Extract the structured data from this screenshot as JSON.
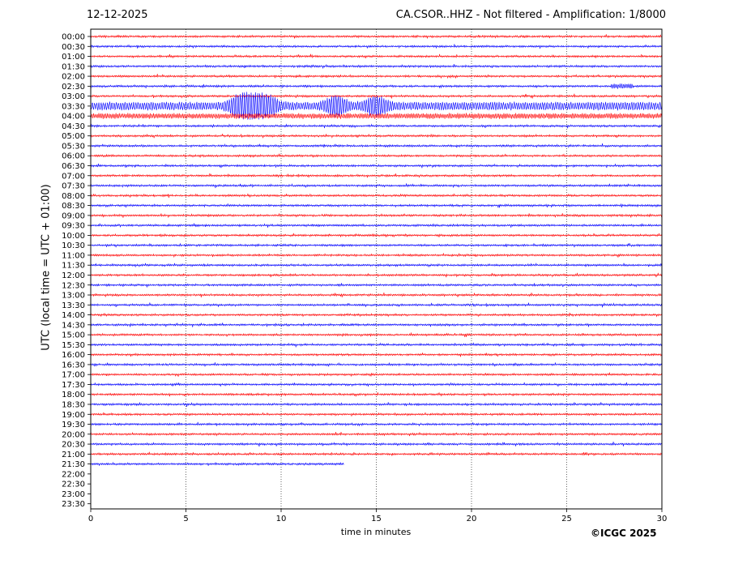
{
  "chart_data": {
    "type": "line",
    "title_left": "12-12-2025",
    "title_right": "CA.CSOR..HHZ - Not filtered - Amplification: 1/8000",
    "xlabel": "time in minutes",
    "ylabel": "UTC (local time = UTC + 01:00)",
    "credit": "©ICGC 2025",
    "xlim": [
      0,
      30
    ],
    "x_ticks": [
      "0",
      "5",
      "10",
      "15",
      "20",
      "25",
      "30"
    ],
    "x_tick_values": [
      0,
      5,
      10,
      15,
      20,
      25,
      30
    ],
    "grid": "vertical dotted",
    "row_labels": [
      "00:00",
      "00:30",
      "01:00",
      "01:30",
      "02:00",
      "02:30",
      "03:00",
      "03:30",
      "04:00",
      "04:30",
      "05:00",
      "05:30",
      "06:00",
      "06:30",
      "07:00",
      "07:30",
      "08:00",
      "08:30",
      "09:00",
      "09:30",
      "10:00",
      "10:30",
      "11:00",
      "11:30",
      "12:00",
      "12:30",
      "13:00",
      "13:30",
      "14:00",
      "14:30",
      "15:00",
      "15:30",
      "16:00",
      "16:30",
      "17:00",
      "17:30",
      "18:00",
      "18:30",
      "19:00",
      "19:30",
      "20:00",
      "20:30",
      "21:00",
      "21:30",
      "22:00",
      "22:30",
      "23:00",
      "23:30"
    ],
    "colors": {
      "even_rows": "#ff0000",
      "odd_rows": "#0000ff"
    },
    "rows_with_data": 44,
    "last_row_end_minute": 13.3,
    "events": [
      {
        "row": "02:30",
        "start_minute": 27.3,
        "end_minute": 28.5,
        "amplitude": "medium"
      },
      {
        "row": "03:30",
        "start_minute": 0,
        "end_minute": 30,
        "amplitude": "large",
        "peaks_minute": [
          7.8,
          8.5,
          9.3,
          12.9,
          15.0
        ]
      },
      {
        "row": "04:00",
        "start_minute": 0,
        "end_minute": 30,
        "amplitude": "medium"
      }
    ]
  }
}
